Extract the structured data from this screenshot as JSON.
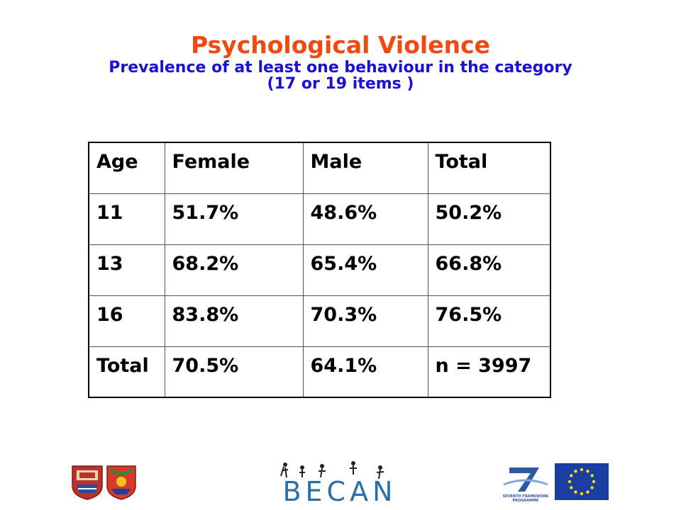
{
  "header": {
    "title": "Psychological Violence",
    "subtitle_line1": "Prevalence of at least one behaviour in the category",
    "subtitle_line2": "(17 or 19 items )"
  },
  "table": {
    "columns": [
      "Age",
      "Female",
      "Male",
      "Total"
    ],
    "rows": [
      [
        "11",
        "51.7%",
        "48.6%",
        "50.2%"
      ],
      [
        "13",
        "68.2%",
        "65.4%",
        "66.8%"
      ],
      [
        "16",
        "83.8%",
        "70.3%",
        "76.5%"
      ],
      [
        "Total",
        "70.5%",
        "64.1%",
        "n = 3997"
      ]
    ]
  },
  "footer": {
    "becan_logo_text": "BECAN",
    "fp7_caption_line1": "SEVENTH FRAMEWORK",
    "fp7_caption_line2": "PROGRAMME",
    "colors": {
      "eu_blue": "#1a3fa0",
      "eu_gold": "#ffdd00",
      "title": "#f04a10",
      "subtitle": "#1a10d8"
    }
  }
}
